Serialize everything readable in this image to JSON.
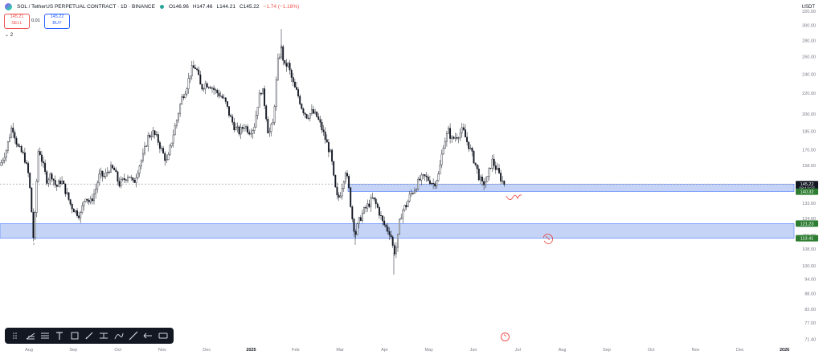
{
  "header": {
    "symbol": "SOL / TetherUS PERPETUAL CONTRACT · 1D · BINANCE",
    "open": "O146.96",
    "high": "H147.46",
    "low": "L144.21",
    "close": "C145.22",
    "change": "−1.74 (−1.18%)"
  },
  "trade": {
    "sell_price": "145.21",
    "sell_label": "SELL",
    "spread": "0.01",
    "buy_price": "145.22",
    "buy_label": "BUY"
  },
  "indicators_count": "2",
  "currency": "USDT",
  "colors": {
    "up": "#131722",
    "down": "#131722",
    "zone": "#bbcdf5",
    "zone_border": "#2962ff",
    "green_label": "#2e7d32",
    "last_price_label": "#131722",
    "annotation": "#e53935"
  },
  "chart_data": {
    "type": "candlestick",
    "ylim": [
      70,
      320
    ],
    "y_ticks": [
      "320.00",
      "300.00",
      "280.00",
      "260.00",
      "240.00",
      "220.00",
      "200.00",
      "185.00",
      "170.00",
      "158.00",
      "145.00",
      "133.00",
      "124.00",
      "115.00",
      "108.00",
      "100.00",
      "94.00",
      "88.00",
      "82.00",
      "77.00",
      "71.40"
    ],
    "x_ticks": [
      "Aug",
      "Sep",
      "Oct",
      "Nov",
      "Dec",
      "2025",
      "Feb",
      "Mar",
      "Apr",
      "May",
      "Jun",
      "Jul",
      "Aug",
      "Sep",
      "Oct",
      "Nov",
      "Dec",
      "2026"
    ],
    "price_path": [
      [
        0,
        158
      ],
      [
        8,
        170
      ],
      [
        15,
        190
      ],
      [
        22,
        172
      ],
      [
        30,
        165
      ],
      [
        36,
        150
      ],
      [
        42,
        110
      ],
      [
        48,
        172
      ],
      [
        52,
        162
      ],
      [
        58,
        148
      ],
      [
        64,
        152
      ],
      [
        70,
        143
      ],
      [
        76,
        148
      ],
      [
        82,
        140
      ],
      [
        88,
        132
      ],
      [
        94,
        128
      ],
      [
        100,
        126
      ],
      [
        106,
        138
      ],
      [
        112,
        133
      ],
      [
        118,
        140
      ],
      [
        124,
        152
      ],
      [
        130,
        150
      ],
      [
        136,
        156
      ],
      [
        142,
        155
      ],
      [
        148,
        145
      ],
      [
        154,
        148
      ],
      [
        160,
        152
      ],
      [
        166,
        145
      ],
      [
        172,
        156
      ],
      [
        178,
        165
      ],
      [
        184,
        180
      ],
      [
        190,
        184
      ],
      [
        196,
        178
      ],
      [
        202,
        168
      ],
      [
        208,
        160
      ],
      [
        214,
        178
      ],
      [
        220,
        195
      ],
      [
        226,
        215
      ],
      [
        232,
        226
      ],
      [
        238,
        245
      ],
      [
        244,
        248
      ],
      [
        250,
        225
      ],
      [
        256,
        230
      ],
      [
        262,
        228
      ],
      [
        268,
        222
      ],
      [
        274,
        218
      ],
      [
        280,
        212
      ],
      [
        286,
        198
      ],
      [
        292,
        188
      ],
      [
        298,
        184
      ],
      [
        304,
        190
      ],
      [
        310,
        185
      ],
      [
        316,
        188
      ],
      [
        322,
        215
      ],
      [
        326,
        226
      ],
      [
        330,
        205
      ],
      [
        334,
        182
      ],
      [
        340,
        192
      ],
      [
        346,
        255
      ],
      [
        350,
        270
      ],
      [
        354,
        248
      ],
      [
        358,
        252
      ],
      [
        362,
        238
      ],
      [
        366,
        226
      ],
      [
        370,
        220
      ],
      [
        376,
        205
      ],
      [
        382,
        198
      ],
      [
        388,
        202
      ],
      [
        394,
        198
      ],
      [
        400,
        188
      ],
      [
        406,
        176
      ],
      [
        412,
        165
      ],
      [
        416,
        145
      ],
      [
        420,
        135
      ],
      [
        424,
        140
      ],
      [
        430,
        155
      ],
      [
        434,
        142
      ],
      [
        438,
        125
      ],
      [
        442,
        115
      ],
      [
        446,
        122
      ],
      [
        452,
        128
      ],
      [
        458,
        132
      ],
      [
        464,
        136
      ],
      [
        470,
        130
      ],
      [
        476,
        122
      ],
      [
        482,
        118
      ],
      [
        486,
        116
      ],
      [
        490,
        106
      ],
      [
        494,
        110
      ],
      [
        498,
        125
      ],
      [
        502,
        130
      ],
      [
        506,
        132
      ],
      [
        510,
        138
      ],
      [
        516,
        142
      ],
      [
        522,
        148
      ],
      [
        528,
        150
      ],
      [
        534,
        148
      ],
      [
        540,
        145
      ],
      [
        546,
        152
      ],
      [
        552,
        175
      ],
      [
        558,
        185
      ],
      [
        562,
        178
      ],
      [
        566,
        180
      ],
      [
        570,
        182
      ],
      [
        576,
        186
      ],
      [
        580,
        178
      ],
      [
        584,
        172
      ],
      [
        588,
        165
      ],
      [
        592,
        158
      ],
      [
        596,
        150
      ],
      [
        600,
        145
      ],
      [
        606,
        148
      ],
      [
        612,
        162
      ],
      [
        618,
        155
      ],
      [
        624,
        148
      ],
      [
        628,
        145.22
      ]
    ],
    "zones": [
      {
        "top": 145.22,
        "bottom": 140.32,
        "x_start": 433
      },
      {
        "top": 121.23,
        "bottom": 113.41,
        "x_start": 0
      }
    ],
    "price_labels": [
      {
        "value": 145.22,
        "text": "145.22",
        "sub": "18:12:27",
        "kind": "last"
      },
      {
        "value": 140.32,
        "text": "140.32",
        "kind": "green"
      },
      {
        "value": 121.23,
        "text": "121.23",
        "kind": "green"
      },
      {
        "value": 113.41,
        "text": "113.41",
        "kind": "green"
      }
    ]
  }
}
